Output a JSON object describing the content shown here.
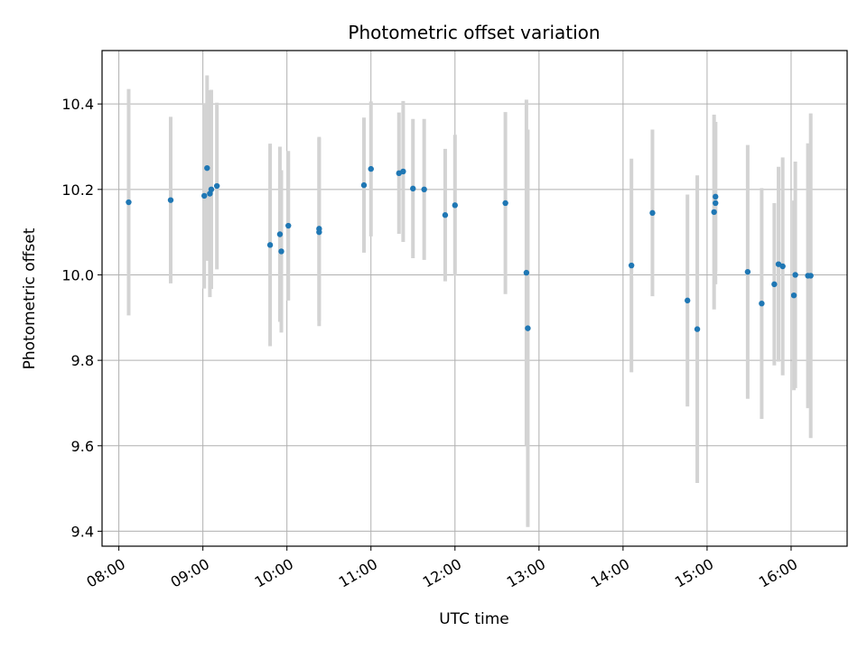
{
  "chart_data": {
    "type": "scatter",
    "title": "Photometric offset variation",
    "xlabel": "UTC time",
    "ylabel": "Photometric offset",
    "x_axis_type": "time",
    "xlim": [
      "07:48",
      "16:40"
    ],
    "ylim": [
      9.365,
      10.525
    ],
    "grid": true,
    "x_ticks": [
      "08:00",
      "09:00",
      "10:00",
      "11:00",
      "12:00",
      "13:00",
      "14:00",
      "15:00",
      "16:00"
    ],
    "y_ticks": [
      9.4,
      9.6,
      9.8,
      10.0,
      10.2,
      10.4
    ],
    "y_tick_labels": [
      "9.4",
      "9.6",
      "9.8",
      "10.0",
      "10.2",
      "10.4"
    ],
    "colors": {
      "point": "#1f77b4",
      "errorbar": "#d3d3d3",
      "grid": "#b0b0b0"
    },
    "series": [
      {
        "points": [
          {
            "x": "08:07",
            "y": 10.17,
            "err": 0.265
          },
          {
            "x": "08:37",
            "y": 10.175,
            "err": 0.195
          },
          {
            "x": "09:01",
            "y": 10.185,
            "err": 0.217
          },
          {
            "x": "09:03",
            "y": 10.25,
            "err": 0.217
          },
          {
            "x": "09:05",
            "y": 10.19,
            "err": 0.242
          },
          {
            "x": "09:06",
            "y": 10.2,
            "err": 0.233
          },
          {
            "x": "09:10",
            "y": 10.208,
            "err": 0.195
          },
          {
            "x": "09:48",
            "y": 10.07,
            "err": 0.237
          },
          {
            "x": "09:55",
            "y": 10.095,
            "err": 0.205
          },
          {
            "x": "09:56",
            "y": 10.055,
            "err": 0.19
          },
          {
            "x": "10:01",
            "y": 10.115,
            "err": 0.175
          },
          {
            "x": "10:23",
            "y": 10.1,
            "err": 0.22
          },
          {
            "x": "10:23",
            "y": 10.108,
            "err": 0.215
          },
          {
            "x": "10:55",
            "y": 10.21,
            "err": 0.158
          },
          {
            "x": "11:00",
            "y": 10.248,
            "err": 0.158
          },
          {
            "x": "11:20",
            "y": 10.238,
            "err": 0.142
          },
          {
            "x": "11:23",
            "y": 10.242,
            "err": 0.165
          },
          {
            "x": "11:30",
            "y": 10.202,
            "err": 0.163
          },
          {
            "x": "11:38",
            "y": 10.2,
            "err": 0.165
          },
          {
            "x": "11:53",
            "y": 10.14,
            "err": 0.155
          },
          {
            "x": "12:00",
            "y": 10.163,
            "err": 0.165
          },
          {
            "x": "12:36",
            "y": 10.168,
            "err": 0.213
          },
          {
            "x": "12:51",
            "y": 10.005,
            "err": 0.405
          },
          {
            "x": "12:52",
            "y": 9.875,
            "err": 0.465
          },
          {
            "x": "14:06",
            "y": 10.022,
            "err": 0.25
          },
          {
            "x": "14:21",
            "y": 10.145,
            "err": 0.195
          },
          {
            "x": "14:46",
            "y": 9.94,
            "err": 0.248
          },
          {
            "x": "14:53",
            "y": 9.873,
            "err": 0.36
          },
          {
            "x": "15:05",
            "y": 10.147,
            "err": 0.228
          },
          {
            "x": "15:06",
            "y": 10.168,
            "err": 0.19
          },
          {
            "x": "15:06",
            "y": 10.183,
            "err": 0.175
          },
          {
            "x": "15:29",
            "y": 10.007,
            "err": 0.297
          },
          {
            "x": "15:39",
            "y": 9.933,
            "err": 0.27
          },
          {
            "x": "15:48",
            "y": 9.978,
            "err": 0.19
          },
          {
            "x": "15:51",
            "y": 10.025,
            "err": 0.228
          },
          {
            "x": "15:54",
            "y": 10.02,
            "err": 0.255
          },
          {
            "x": "16:02",
            "y": 9.952,
            "err": 0.222
          },
          {
            "x": "16:03",
            "y": 10.0,
            "err": 0.265
          },
          {
            "x": "16:12",
            "y": 9.998,
            "err": 0.31
          },
          {
            "x": "16:14",
            "y": 9.998,
            "err": 0.38
          }
        ]
      }
    ]
  }
}
